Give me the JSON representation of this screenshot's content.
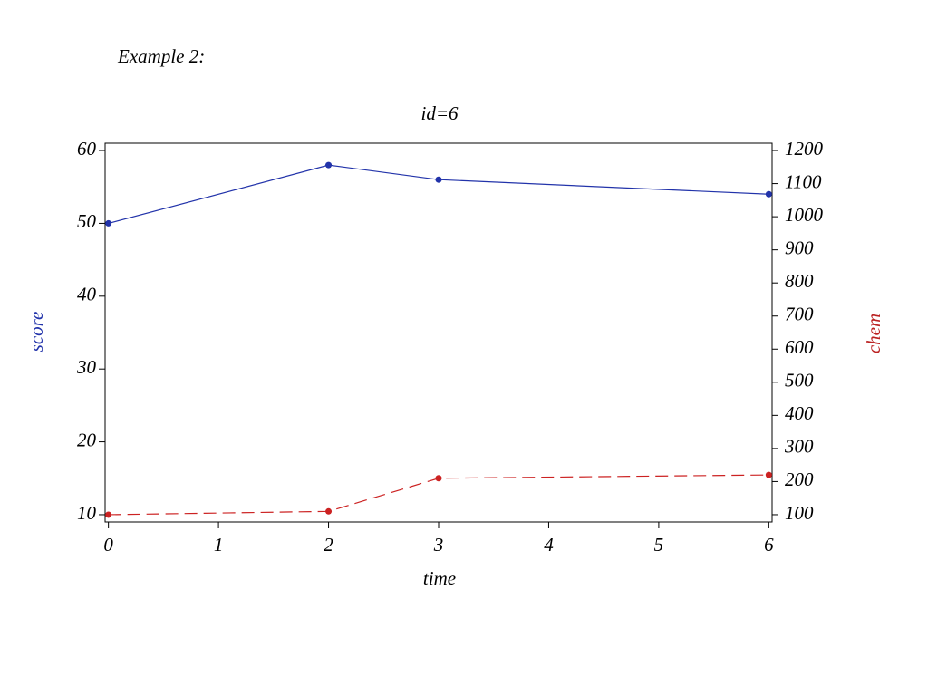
{
  "heading": "Example 2:",
  "chart_data": {
    "type": "line",
    "title": "id=6",
    "xlabel": "time",
    "ylabel": "score",
    "y2label": "chem",
    "x": [
      0,
      2,
      3,
      6
    ],
    "xlim": [
      -0.03,
      6.03
    ],
    "xticks": [
      0,
      1,
      2,
      3,
      4,
      5,
      6
    ],
    "ylim": [
      9,
      61
    ],
    "yticks": [
      10,
      20,
      30,
      40,
      50,
      60
    ],
    "y2lim": [
      78,
      1222
    ],
    "y2ticks": [
      100,
      200,
      300,
      400,
      500,
      600,
      700,
      800,
      900,
      1000,
      1100,
      1200
    ],
    "ylabel_color": "#2233aa",
    "y2label_color": "#bb2222",
    "series": [
      {
        "name": "score",
        "color": "#2233aa",
        "linestyle": "solid",
        "values": [
          50,
          58,
          56,
          54
        ]
      },
      {
        "name": "chem",
        "color": "#cc2222",
        "linestyle": "dashed",
        "axis": "y2",
        "values": [
          100,
          110,
          210,
          220
        ]
      }
    ]
  }
}
